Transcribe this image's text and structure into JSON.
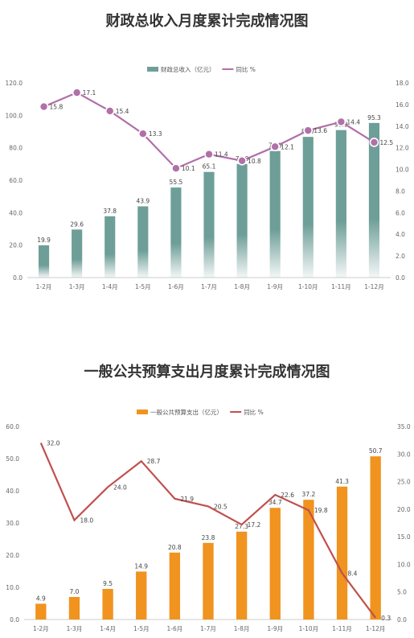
{
  "chart_data": [
    {
      "type": "bar",
      "title": "财政总收入月度累计完成情况图",
      "categories": [
        "1-2月",
        "1-3月",
        "1-4月",
        "1-5月",
        "1-6月",
        "1-7月",
        "1-8月",
        "1-9月",
        "1-10月",
        "1-11月",
        "1-12月"
      ],
      "series": [
        {
          "name": "财政总收入（亿元）",
          "type": "bar",
          "axis": "left",
          "color": "#6E9E98",
          "values": [
            19.9,
            29.6,
            37.8,
            43.9,
            55.5,
            65.1,
            70.0,
            78.0,
            86.7,
            90.9,
            95.3
          ]
        },
        {
          "name": "同比 %",
          "type": "line",
          "axis": "right",
          "color": "#B070A8",
          "values": [
            15.8,
            17.1,
            15.4,
            13.3,
            10.1,
            11.4,
            10.8,
            12.1,
            13.6,
            14.4,
            12.5
          ]
        }
      ],
      "ylim": [
        0,
        120
      ],
      "yticks": [
        "0.0",
        "20.0",
        "40.0",
        "60.0",
        "80.0",
        "100.0",
        "120.0"
      ],
      "y2lim": [
        0,
        18
      ],
      "y2ticks": [
        "0.0",
        "2.0",
        "4.0",
        "6.0",
        "8.0",
        "10.0",
        "12.0",
        "14.0",
        "16.0",
        "18.0"
      ],
      "legend": "top-center",
      "grid": false
    },
    {
      "type": "bar",
      "title": "一般公共预算支出月度累计完成情况图",
      "categories": [
        "1-2月",
        "1-3月",
        "1-4月",
        "1-5月",
        "1-6月",
        "1-7月",
        "1-8月",
        "1-9月",
        "1-10月",
        "1-11月",
        "1-12月"
      ],
      "series": [
        {
          "name": "一般公共预算支出（亿元）",
          "type": "bar",
          "axis": "left",
          "color": "#F0931F",
          "values": [
            4.9,
            7.0,
            9.5,
            14.9,
            20.8,
            23.8,
            27.3,
            34.7,
            37.2,
            41.3,
            50.7
          ]
        },
        {
          "name": "同比 %",
          "type": "line",
          "axis": "right",
          "color": "#C0504D",
          "values": [
            32.0,
            18.0,
            24.0,
            28.7,
            21.9,
            20.5,
            17.2,
            22.6,
            19.8,
            8.4,
            0.3
          ]
        }
      ],
      "ylim": [
        0,
        60
      ],
      "yticks": [
        "0.0",
        "10.0",
        "20.0",
        "30.0",
        "40.0",
        "50.0",
        "60.0"
      ],
      "y2lim": [
        0,
        35
      ],
      "y2ticks": [
        "0.0",
        "5.0",
        "10.0",
        "15.0",
        "20.0",
        "25.0",
        "30.0",
        "35.0"
      ],
      "legend": "top-center",
      "grid": false
    }
  ]
}
